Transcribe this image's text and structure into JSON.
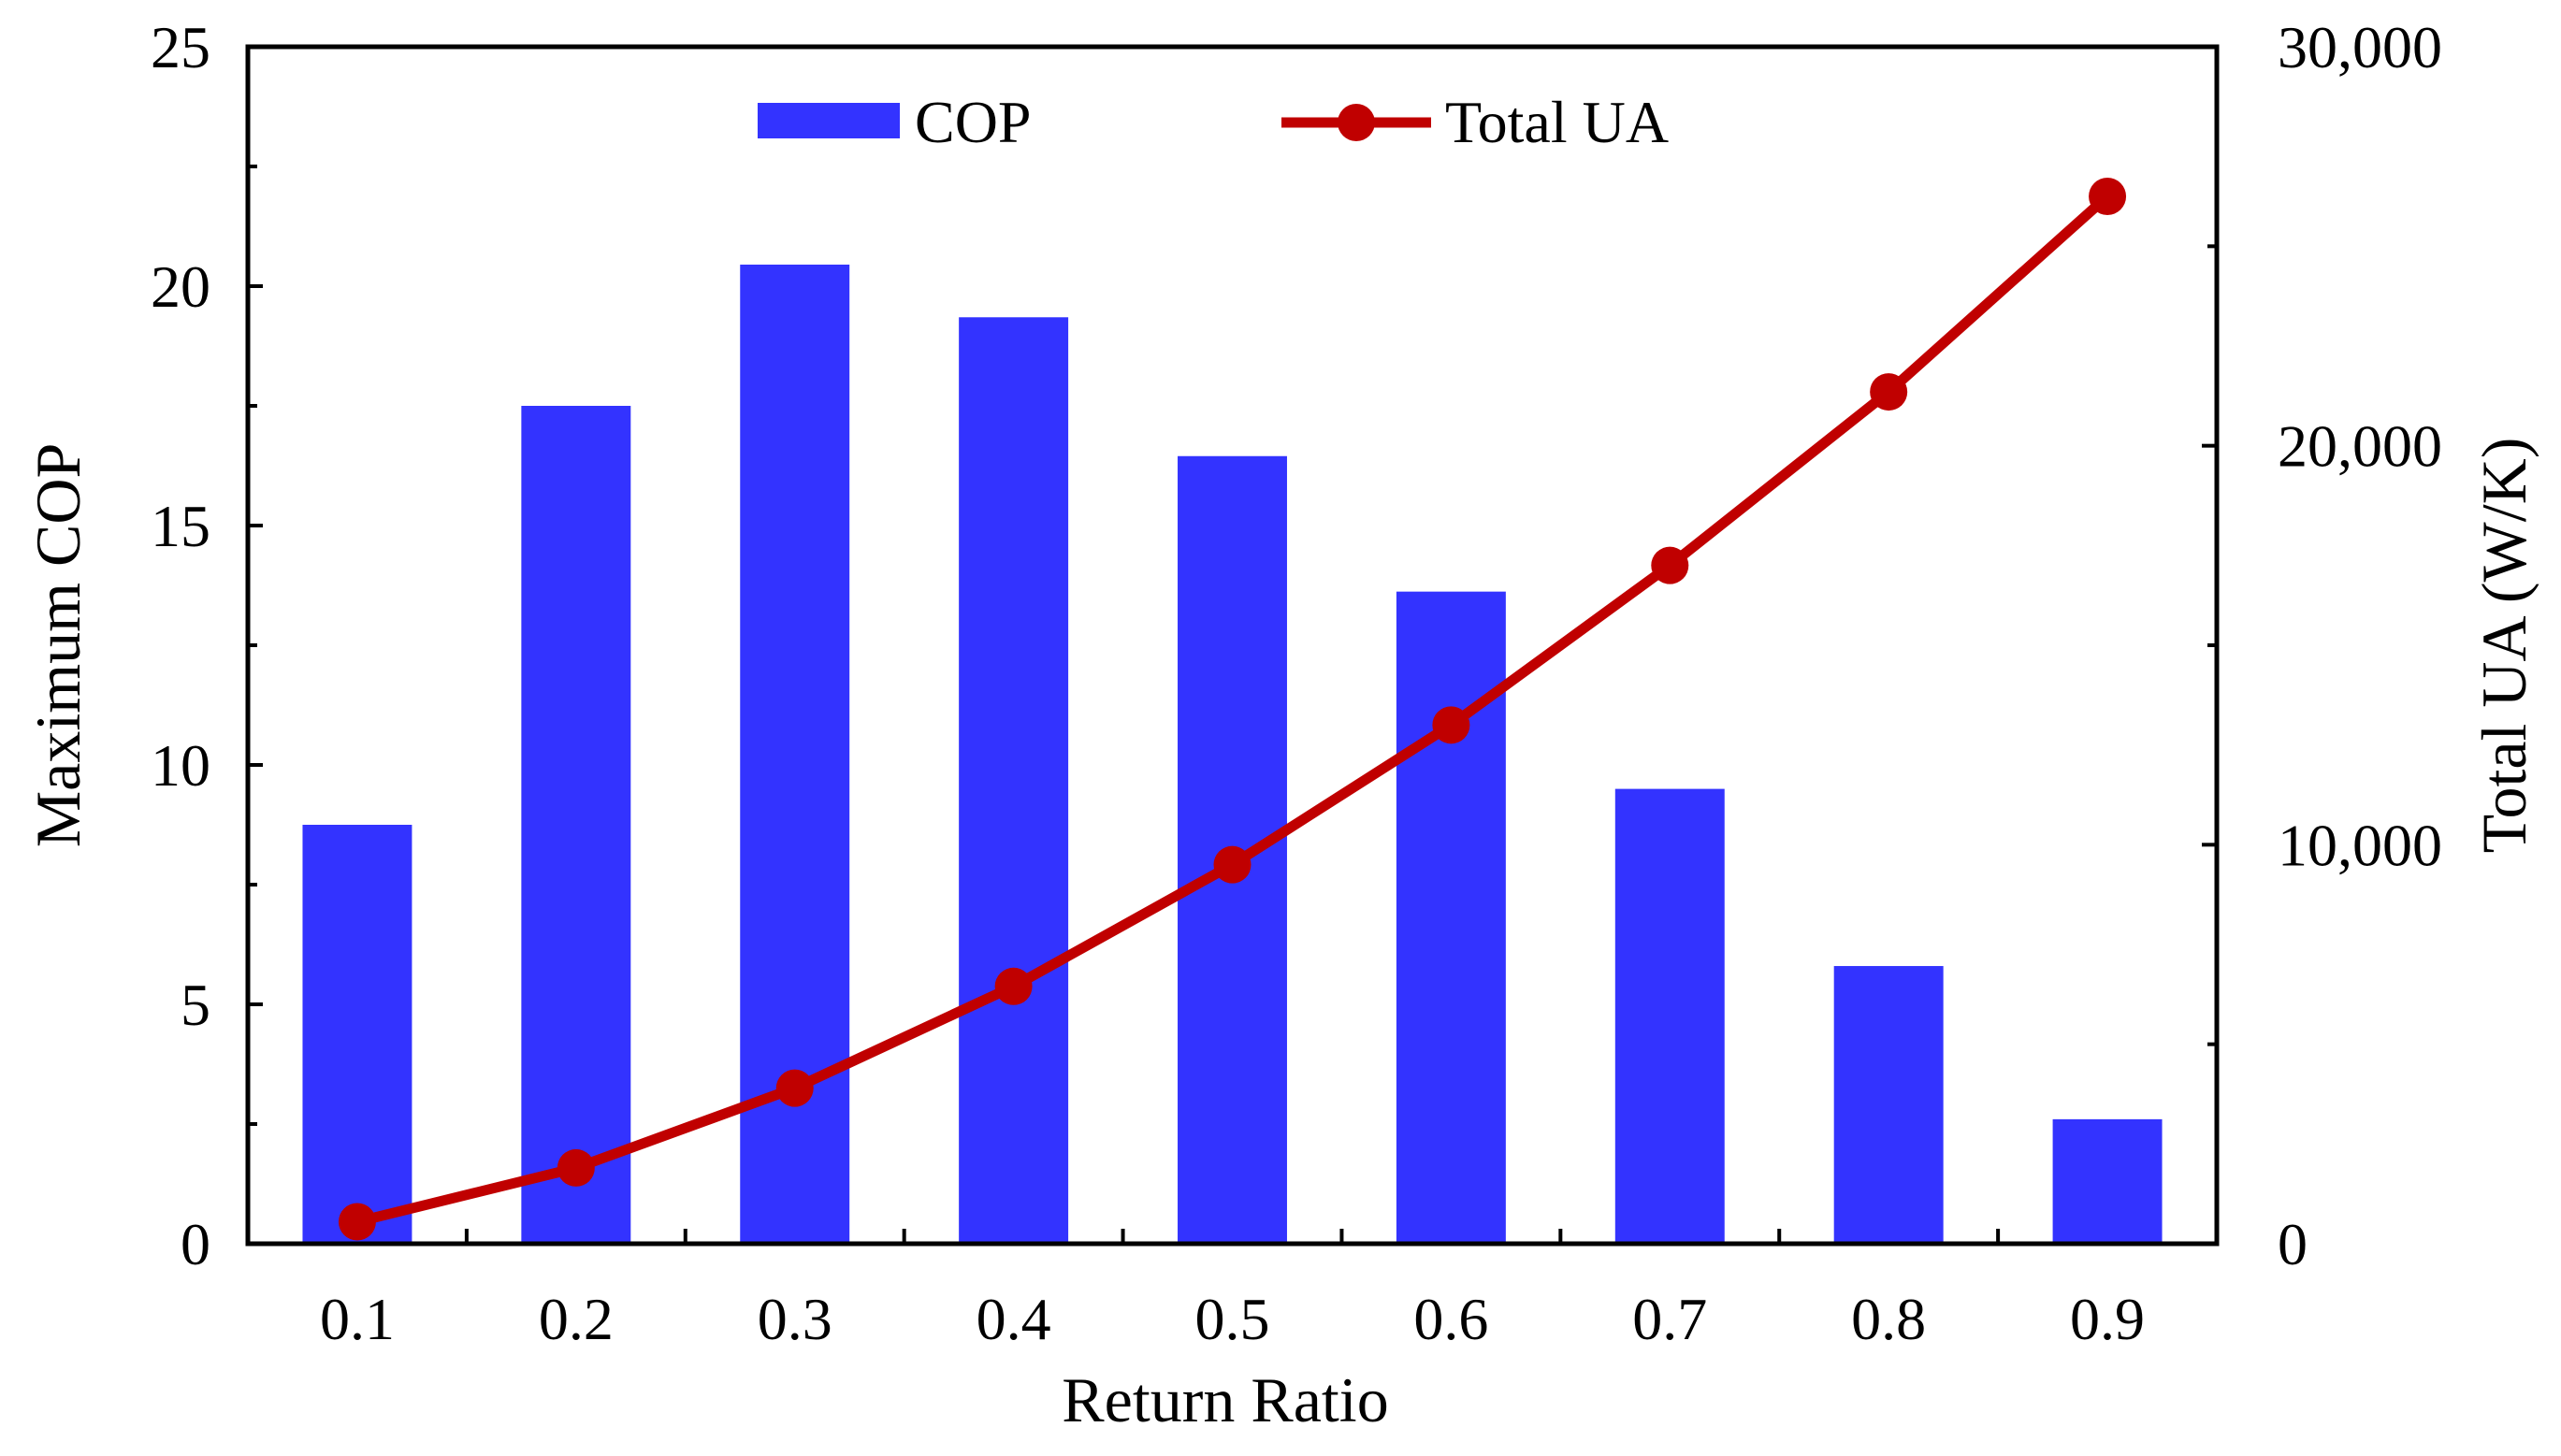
{
  "chart_data": {
    "type": "bar",
    "categories": [
      "0.1",
      "0.2",
      "0.3",
      "0.4",
      "0.5",
      "0.6",
      "0.7",
      "0.8",
      "0.9"
    ],
    "xlabel": "Return Ratio",
    "ylabel": "Maximum COP",
    "y2label": "Total UA (W/K)",
    "ylim": [
      0,
      25
    ],
    "y2lim": [
      0,
      30000
    ],
    "yticks": [
      "0",
      "5",
      "10",
      "15",
      "20",
      "25"
    ],
    "y2ticks": [
      "0",
      "10,000",
      "20,000",
      "30,000"
    ],
    "legend_position": "top",
    "grid": false,
    "series": [
      {
        "name": "COP",
        "type": "bar",
        "axis": "left",
        "color": "#3333ff",
        "values": [
          8.75,
          17.5,
          20.45,
          19.35,
          16.45,
          13.62,
          9.5,
          5.8,
          2.6
        ]
      },
      {
        "name": "Total UA",
        "type": "line",
        "axis": "right",
        "color": "#c00000",
        "marker": "circle",
        "values": [
          550,
          1900,
          3900,
          6450,
          9500,
          13000,
          17000,
          21350,
          26250
        ]
      }
    ]
  }
}
